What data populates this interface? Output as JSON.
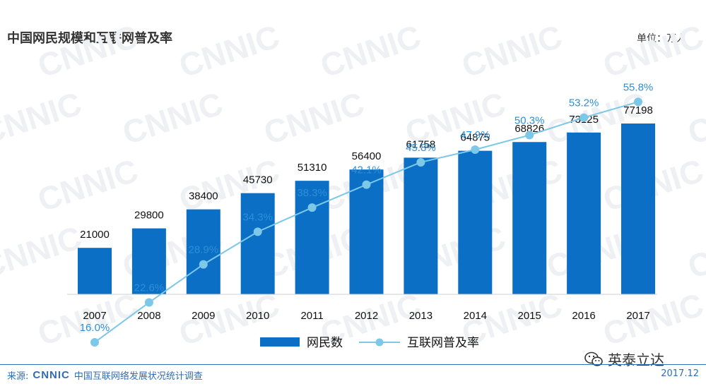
{
  "header": {
    "title": "中国网民规模和互联网普及率",
    "unit": "单位：万人"
  },
  "footer": {
    "source_prefix": "来源:",
    "source_logo": "CNNIC",
    "source_text": "中国互联网络发展状况统计调查",
    "date": "2017.12"
  },
  "watermark": {
    "text": "CNNIC"
  },
  "wechat": {
    "account": "英泰立达",
    "icon": "wechat-icon"
  },
  "colors": {
    "bar": "#0b6fc6",
    "line": "#7cc8e8",
    "line_label": "#2e8fd6",
    "footer": "#2f6db5"
  },
  "chart_data": {
    "type": "bar",
    "categories": [
      "2007",
      "2008",
      "2009",
      "2010",
      "2011",
      "2012",
      "2013",
      "2014",
      "2015",
      "2016",
      "2017"
    ],
    "series": [
      {
        "name": "网民数",
        "type": "bar",
        "values": [
          21000,
          29800,
          38400,
          45730,
          51310,
          56400,
          61758,
          64875,
          68826,
          73125,
          77198
        ]
      },
      {
        "name": "互联网普及率",
        "type": "line",
        "values": [
          16.0,
          22.6,
          28.9,
          34.3,
          38.3,
          42.1,
          45.8,
          47.9,
          50.3,
          53.2,
          55.8
        ],
        "labels": [
          "16.0%",
          "22.6%",
          "28.9%",
          "34.3%",
          "38.3%",
          "42.1%",
          "45.8%",
          "47.9%",
          "50.3%",
          "53.2%",
          "55.8%"
        ]
      }
    ],
    "title": "中国网民规模和互联网普及率",
    "ylabel": "",
    "legend": "bottom-center",
    "grid": false
  }
}
